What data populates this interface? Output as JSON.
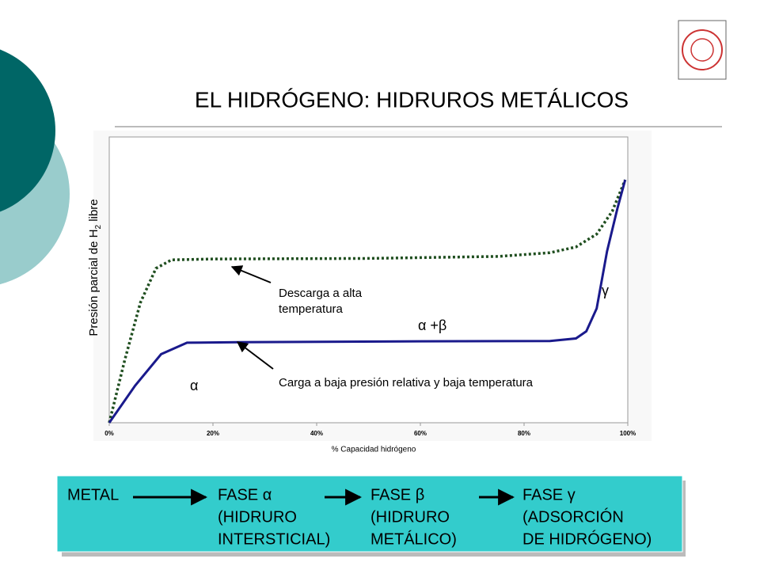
{
  "title": "EL HIDRÓGENO: HIDRUROS METÁLICOS",
  "chart_data": {
    "type": "line",
    "ylabel": [
      "Presión parcial de H",
      "2",
      " libre"
    ],
    "xlabel": "% Capacidad hidrógeno",
    "xlim": [
      0,
      100
    ],
    "xticks": [
      {
        "value": 0,
        "label": "0%"
      },
      {
        "value": 20,
        "label": "20%"
      },
      {
        "value": 40,
        "label": "40%"
      },
      {
        "value": 60,
        "label": "60%"
      },
      {
        "value": 80,
        "label": "80%"
      },
      {
        "value": 100,
        "label": "100%"
      }
    ],
    "ylim": [
      0,
      100
    ],
    "series": [
      {
        "color": "#1f4e1f",
        "dashed": true,
        "x": [
          0,
          3,
          6,
          9,
          12,
          20,
          50,
          75,
          85,
          90,
          94,
          97,
          99.5
        ],
        "values": [
          0,
          22,
          42,
          54,
          57,
          57.3,
          57.5,
          58.2,
          59.5,
          61.5,
          66,
          74,
          85
        ]
      },
      {
        "color": "#1a1a8c",
        "dashed": false,
        "x": [
          0,
          5,
          10,
          15,
          25,
          60,
          85,
          90,
          92,
          94,
          96,
          98,
          99.5
        ],
        "values": [
          0,
          13,
          24,
          28,
          28.2,
          28.5,
          28.6,
          29.5,
          32,
          40,
          60,
          75,
          85
        ]
      }
    ],
    "annotations": [
      {
        "lines": [
          "Descarga a alta",
          "temperatura"
        ]
      },
      {
        "lines": [
          "Carga a baja presión relativa y baja temperatura"
        ]
      },
      {
        "lines": [
          "α"
        ]
      },
      {
        "lines": [
          "α +β"
        ]
      },
      {
        "lines": [
          "γ"
        ]
      }
    ]
  },
  "flow": [
    {
      "lines": [
        "METAL"
      ]
    },
    {
      "lines": [
        "FASE α",
        "(HIDRURO",
        "INTERSTICIAL)"
      ]
    },
    {
      "lines": [
        "FASE β",
        "(HIDRURO",
        "METÁLICO)"
      ]
    },
    {
      "lines": [
        "FASE γ",
        "(ADSORCIÓN",
        "DE HIDRÓGENO)"
      ]
    }
  ]
}
